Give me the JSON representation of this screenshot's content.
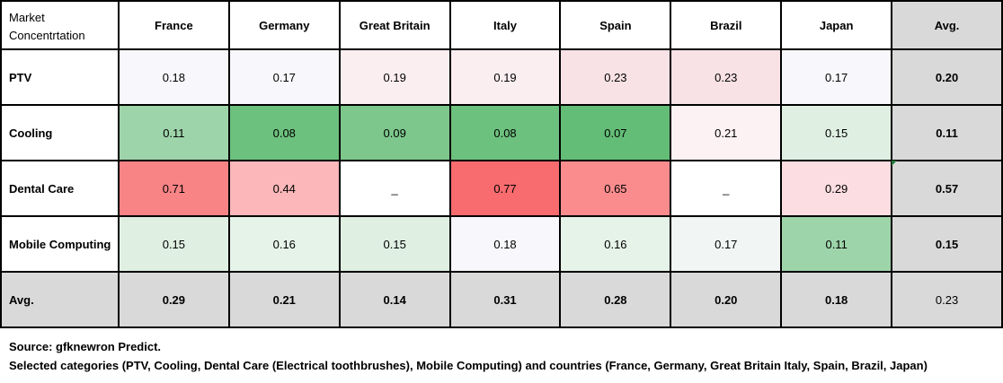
{
  "chart_data": {
    "type": "table",
    "corner_label_line1": "Market",
    "corner_label_line2": "Concentrtation",
    "columns": [
      "France",
      "Germany",
      "Great Britain",
      "Italy",
      "Spain",
      "Brazil",
      "Japan",
      "Avg."
    ],
    "rows": [
      {
        "label": "PTV",
        "values": [
          "0.18",
          "0.17",
          "0.19",
          "0.19",
          "0.23",
          "0.23",
          "0.17"
        ],
        "avg": "0.20",
        "colors": [
          "#f8f8fc",
          "#f8f8fc",
          "#fbeef1",
          "#fbeef1",
          "#f8e2e6",
          "#f8e2e6",
          "#f8f8fc"
        ]
      },
      {
        "label": "Cooling",
        "values": [
          "0.11",
          "0.08",
          "0.09",
          "0.08",
          "0.07",
          "0.21",
          "0.15"
        ],
        "avg": "0.11",
        "colors": [
          "#9ed4aa",
          "#6dc17e",
          "#7dc78d",
          "#6dc17e",
          "#64bd77",
          "#fcf1f3",
          "#dff0e3"
        ]
      },
      {
        "label": "Dental Care",
        "values": [
          "0.71",
          "0.44",
          "_",
          "0.77",
          "0.65",
          "_",
          "0.29"
        ],
        "avg": "0.57",
        "colors": [
          "#f98486",
          "#fbb7b9",
          "#ffffff",
          "#f86b6e",
          "#fa8c8e",
          "#ffffff",
          "#fcdde1"
        ]
      },
      {
        "label": "Mobile Computing",
        "values": [
          "0.15",
          "0.16",
          "0.15",
          "0.18",
          "0.16",
          "0.17",
          "0.11"
        ],
        "avg": "0.15",
        "colors": [
          "#dff0e3",
          "#e6f3e9",
          "#dff0e3",
          "#f8f7fb",
          "#e6f3e9",
          "#f1f6f4",
          "#9ed4aa"
        ]
      }
    ],
    "avg_row": {
      "label": "Avg.",
      "values": [
        "0.29",
        "0.21",
        "0.14",
        "0.31",
        "0.28",
        "0.20",
        "0.18"
      ],
      "grand": "0.23"
    },
    "source": "Source: gfknewron Predict.",
    "note": "Selected categories (PTV, Cooling, Dental Care (Electrical toothbrushes), Mobile Computing) and countries (France, Germany, Great Britain Italy, Spain, Brazil, Japan)"
  }
}
